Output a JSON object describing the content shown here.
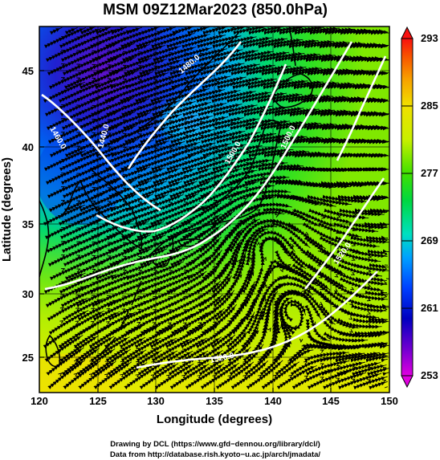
{
  "title": "MSM 09Z12Mar2023 (850.0hPa)",
  "xaxis": {
    "label": "Longitude (degrees)",
    "range": [
      120,
      150
    ],
    "ticks": [
      "120",
      "125",
      "130",
      "135",
      "140",
      "145",
      "150"
    ]
  },
  "yaxis": {
    "label": "Latitude  (degrees)",
    "range": [
      22.5,
      47.6
    ],
    "ticks": [
      "25",
      "30",
      "35",
      "40",
      "45"
    ]
  },
  "colorbar": {
    "range": [
      253,
      293
    ],
    "ticks": [
      "253",
      "261",
      "269",
      "277",
      "285",
      "293"
    ],
    "palette": [
      "#e000e0",
      "#7000d0",
      "#0000c0",
      "#0040ff",
      "#00a0ff",
      "#00e0c0",
      "#00d840",
      "#40e000",
      "#c8f000",
      "#f0e000",
      "#f8a000",
      "#f85000",
      "#f81010"
    ]
  },
  "contours": {
    "color": "#ffffff",
    "labels": [
      "1460.0",
      "1440.0",
      "1480.0",
      "1500.0",
      "1520.0",
      "1500.0",
      "1520.0"
    ]
  },
  "credits": {
    "line1": "Drawing by DCL (https://www.gfd−dennou.org/library/dcl/)",
    "line2": "Data from http://database.rish.kyoto−u.ac.jp/arch/jmadata/"
  },
  "colors": {
    "frame": "#000000",
    "coastline": "#000000",
    "streamline": "#000000",
    "grid": "#000000"
  }
}
